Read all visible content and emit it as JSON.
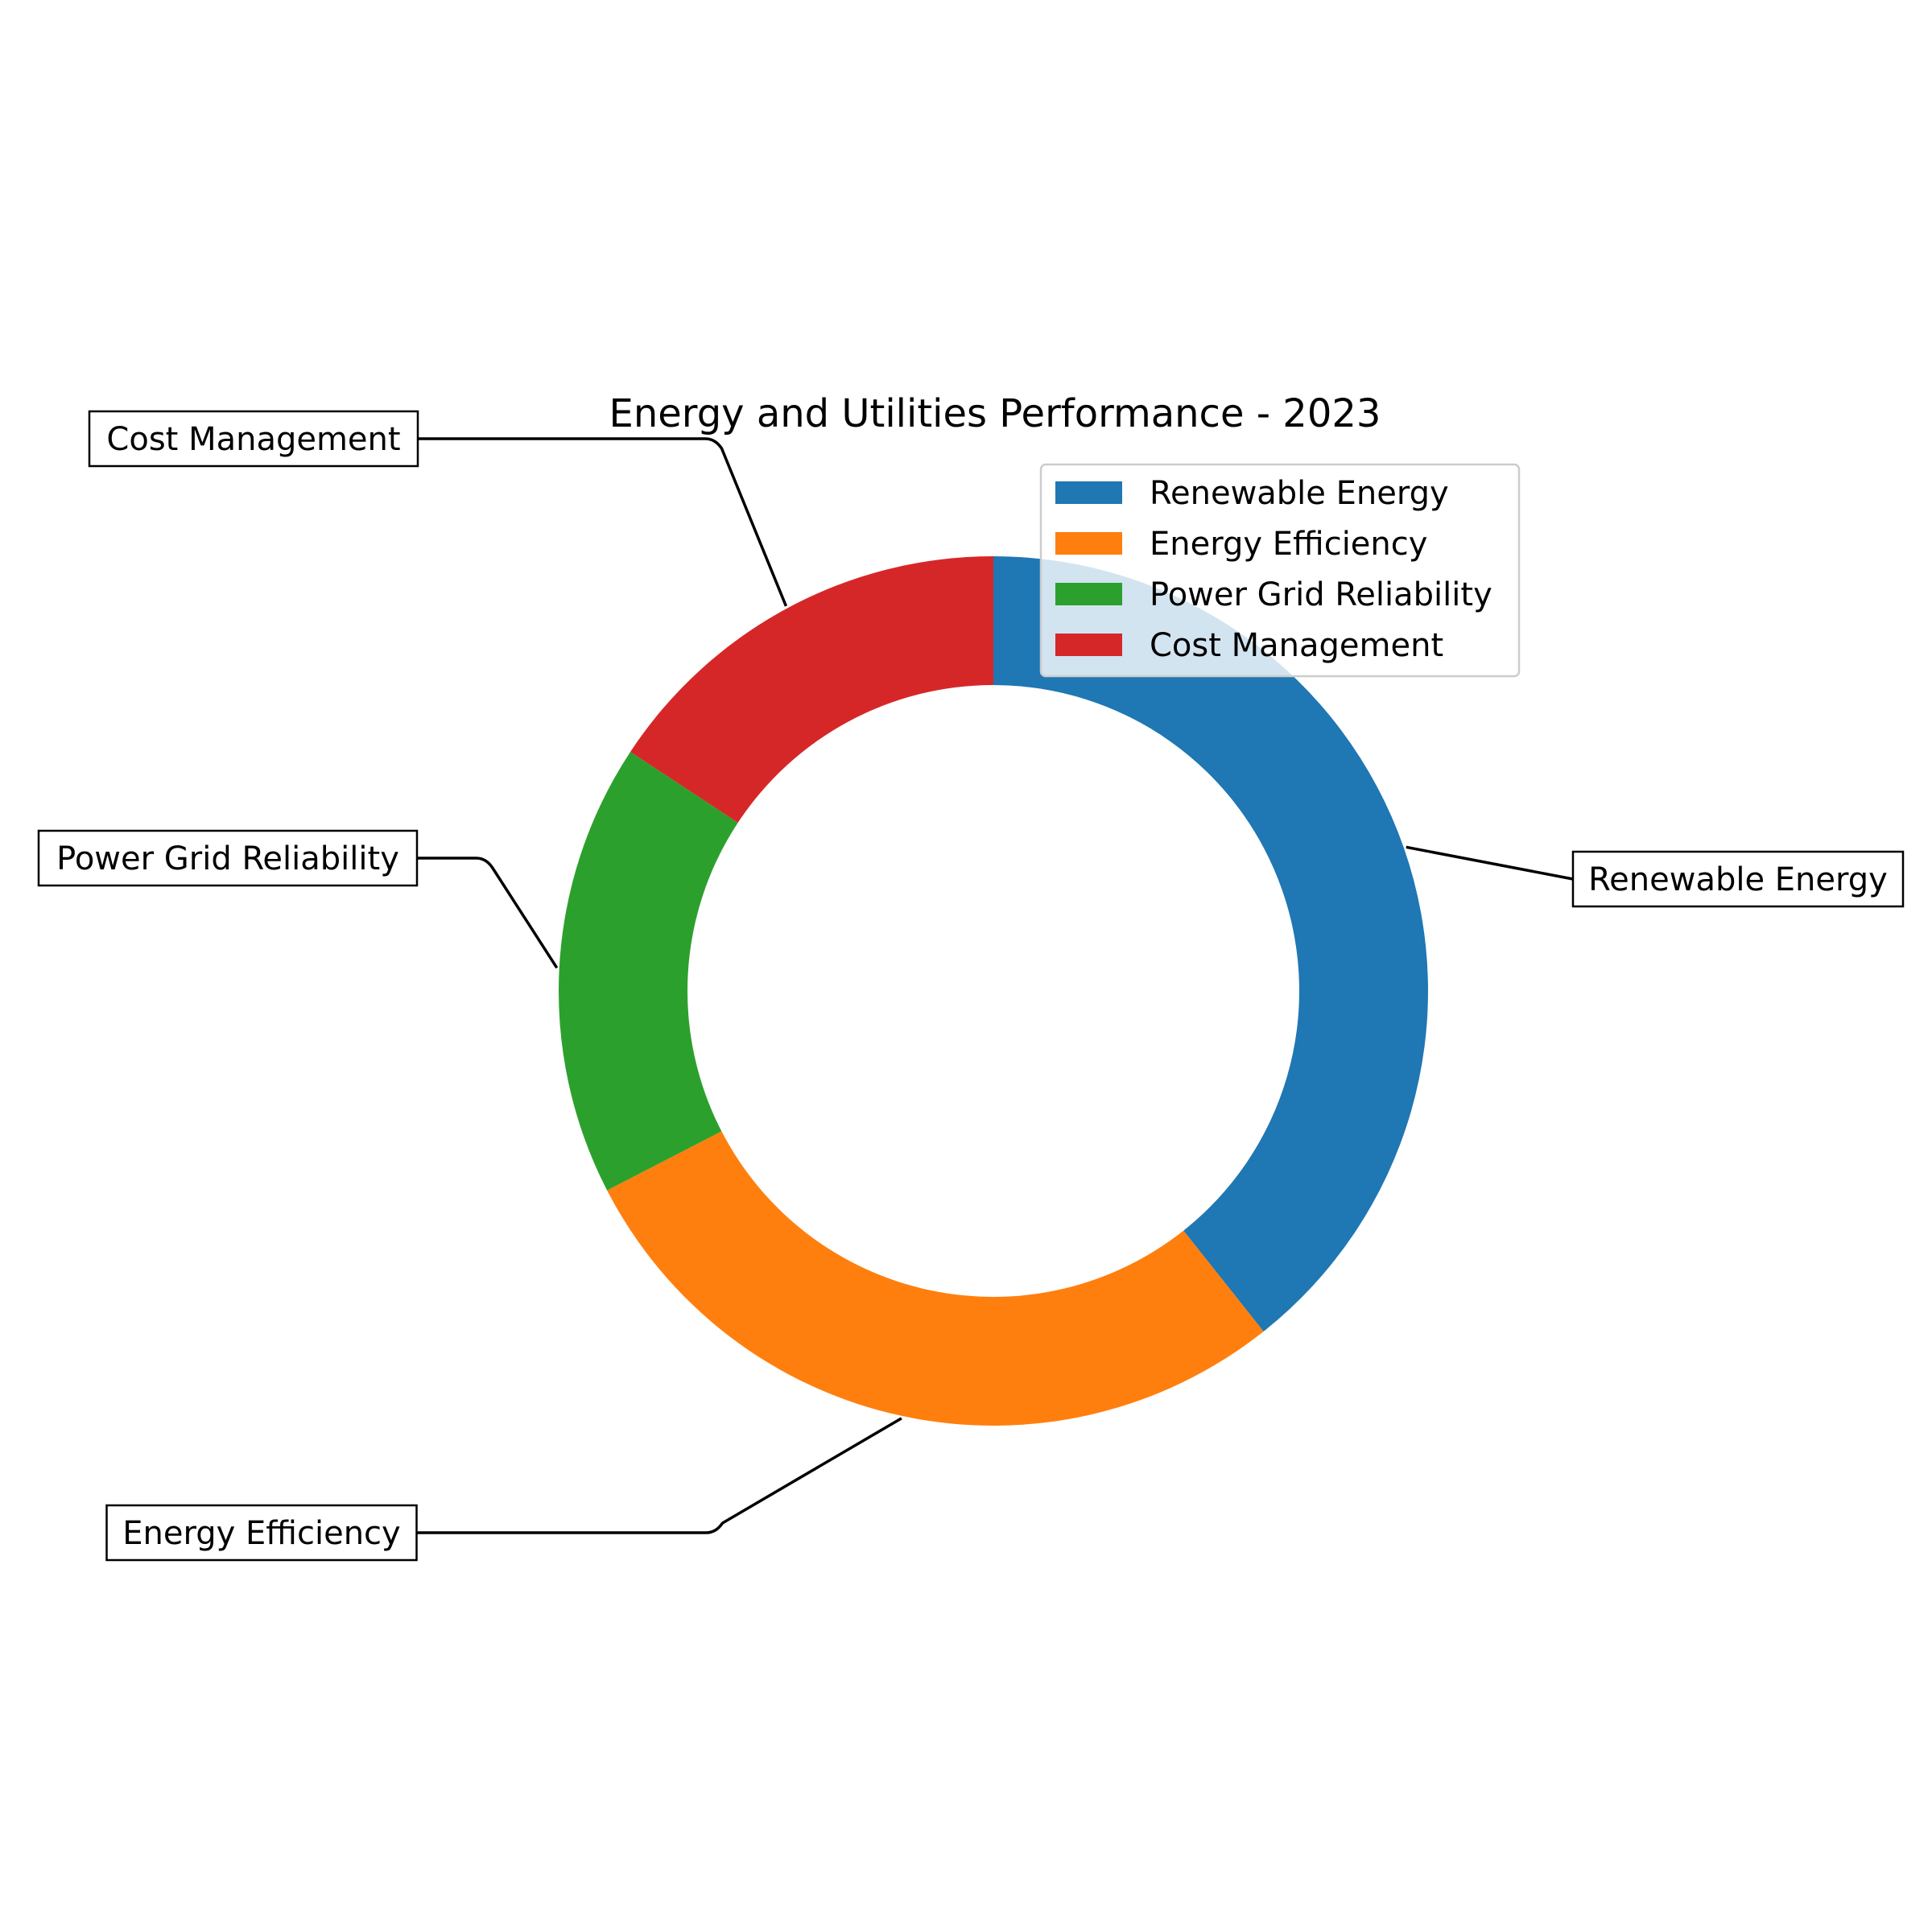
{
  "chart_data": {
    "type": "pie",
    "style": "donut",
    "title": "Energy and Utilities Performance - 2023",
    "categories": [
      "Renewable Energy",
      "Energy Efficiency",
      "Power Grid Reliability",
      "Cost Management"
    ],
    "values": [
      35,
      25,
      15,
      14
    ],
    "colors": [
      "#1f77b4",
      "#ff7f0e",
      "#2ca02c",
      "#d62728"
    ],
    "legend": {
      "position": "top-right",
      "entries": [
        "Renewable Energy",
        "Energy Efficiency",
        "Power Grid Reliability",
        "Cost Management"
      ]
    }
  }
}
